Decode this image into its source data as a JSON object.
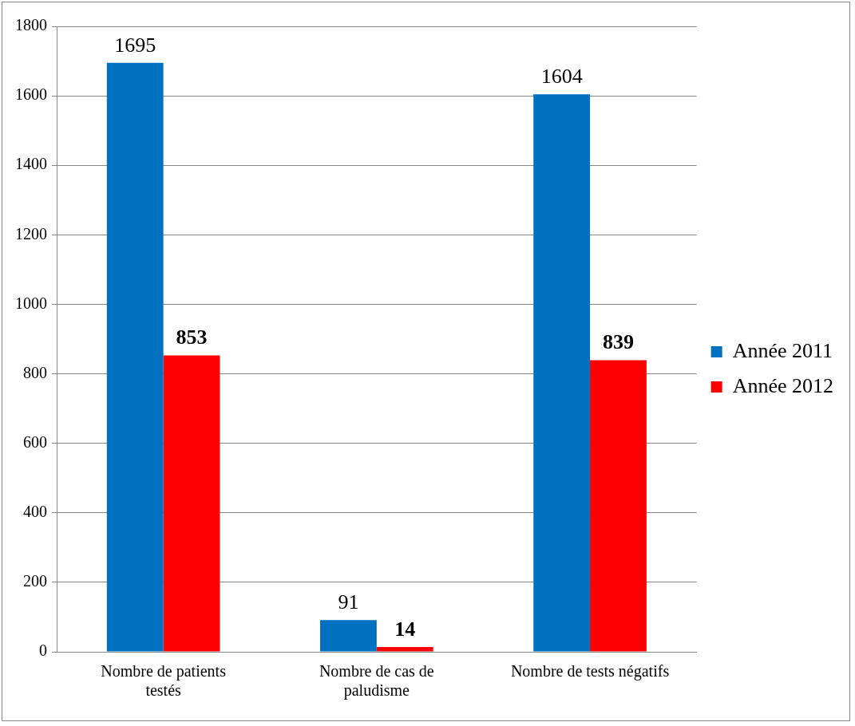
{
  "chart_data": {
    "type": "bar",
    "categories": [
      "Nombre de patients testés",
      "Nombre de cas de paludisme",
      "Nombre de tests négatifs"
    ],
    "series": [
      {
        "name": "Année 2011",
        "color": "#0070c0",
        "values": [
          1695,
          91,
          1604
        ]
      },
      {
        "name": "Année 2012",
        "color": "#ff0000",
        "values": [
          853,
          14,
          839
        ]
      }
    ],
    "ylim": [
      0,
      1800
    ],
    "yticks": [
      0,
      200,
      400,
      600,
      800,
      1000,
      1200,
      1400,
      1600,
      1800
    ],
    "grid": "y",
    "legend": "right",
    "data_labels": true
  }
}
